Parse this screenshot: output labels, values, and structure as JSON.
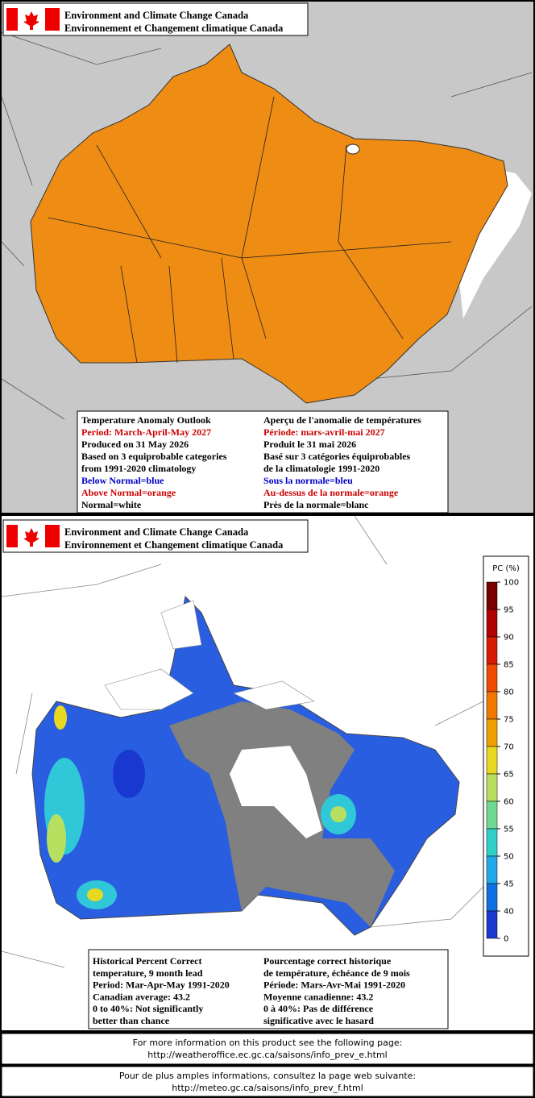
{
  "maps": [
    {
      "header": {
        "line1": "Environment and Climate Change Canada",
        "line2": "Environnement et Changement climatique Canada"
      },
      "info": {
        "left": [
          {
            "text": "Temperature Anomaly Outlook",
            "color": "#000000"
          },
          {
            "text": "Period: March-April-May 2027",
            "color": "#cc0000"
          },
          {
            "text": "Produced on 31 May 2026",
            "color": "#000000"
          },
          {
            "text": "Based on 3 equiprobable categories",
            "color": "#000000"
          },
          {
            "text": "from 1991-2020 climatology",
            "color": "#000000"
          },
          {
            "text": "Below Normal=blue",
            "color": "#0000cc"
          },
          {
            "text": "Above Normal=orange",
            "color": "#cc0000"
          },
          {
            "text": "Normal=white",
            "color": "#000000"
          }
        ],
        "right": [
          {
            "text": "Aperçu de l'anomalie de températures",
            "color": "#000000"
          },
          {
            "text": "Période: mars-avril-mai 2027",
            "color": "#cc0000"
          },
          {
            "text": "Produit le 31 mai 2026",
            "color": "#000000"
          },
          {
            "text": "Basé sur 3 catégories équiprobables",
            "color": "#000000"
          },
          {
            "text": "de la climatologie 1991-2020",
            "color": "#000000"
          },
          {
            "text": "Sous la normale=bleu",
            "color": "#0000cc"
          },
          {
            "text": "Au-dessus de la normale=orange",
            "color": "#cc0000"
          },
          {
            "text": "Près de la normale=blanc",
            "color": "#000000"
          }
        ]
      }
    },
    {
      "header": {
        "line1": "Environment and Climate Change Canada",
        "line2": "Environnement et Changement climatique Canada"
      },
      "info": {
        "left": [
          {
            "text": "Historical Percent Correct",
            "color": "#000000"
          },
          {
            "text": "temperature, 9 month lead",
            "color": "#000000"
          },
          {
            "text": "Period: Mar-Apr-May 1991-2020",
            "color": "#000000"
          },
          {
            "text": "Canadian average: 43.2",
            "color": "#000000"
          },
          {
            "text": "0 to 40%: Not significantly",
            "color": "#000000"
          },
          {
            "text": "better than chance",
            "color": "#000000"
          }
        ],
        "right": [
          {
            "text": "Pourcentage correct historique",
            "color": "#000000"
          },
          {
            "text": "de température, échéance de 9 mois",
            "color": "#000000"
          },
          {
            "text": "Période: Mars-Avr-Mai 1991-2020",
            "color": "#000000"
          },
          {
            "text": "Moyenne canadienne: 43.2",
            "color": "#000000"
          },
          {
            "text": "0 à 40%: Pas de différence",
            "color": "#000000"
          },
          {
            "text": "significative avec le hasard",
            "color": "#000000"
          }
        ]
      }
    }
  ],
  "legend": {
    "title": "PC (%)",
    "ticks": [
      100,
      95,
      90,
      85,
      80,
      75,
      70,
      65,
      60,
      55,
      50,
      45,
      40,
      0
    ],
    "colors": [
      "#7a0000",
      "#b00000",
      "#d81a00",
      "#f04a00",
      "#f07800",
      "#f0a000",
      "#e8d820",
      "#b8e060",
      "#70d890",
      "#30d0c8",
      "#20a8e8",
      "#1070e0",
      "#1838d0",
      "#808080"
    ]
  },
  "footer": {
    "english": [
      "For more information on this product see the following page:",
      "http://weatheroffice.ec.gc.ca/saisons/info_prev_e.html"
    ],
    "french": [
      "Pour de plus amples informations, consultez la page web suivante:",
      "http://meteo.gc.ca/saisons/info_prev_f.html"
    ]
  }
}
